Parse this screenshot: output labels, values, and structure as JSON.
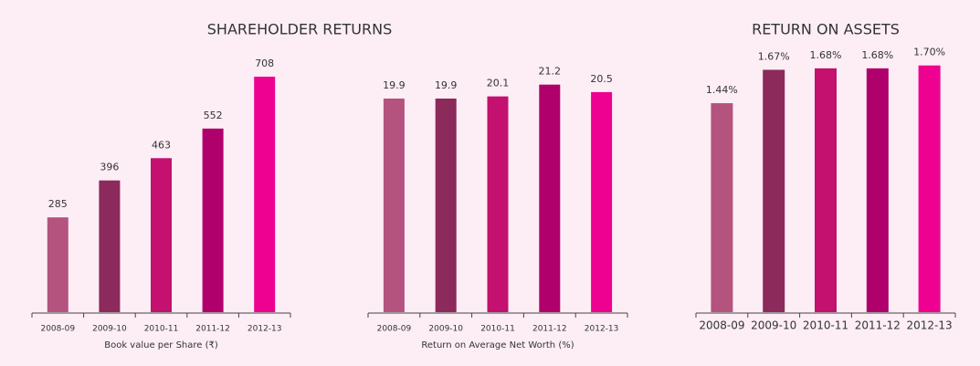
{
  "section_title": "SHAREHOLDER RETURNS",
  "chart_data": [
    {
      "type": "bar",
      "x_label": "Book value per Share (₹)",
      "categories": [
        "2008-09",
        "2009-10",
        "2010-11",
        "2011-12",
        "2012-13"
      ],
      "values": [
        285,
        396,
        463,
        552,
        708
      ],
      "colors": [
        "#b5537f",
        "#8b2a5b",
        "#c4106e",
        "#b0006b",
        "#ee0091"
      ],
      "ylim": [
        0,
        800
      ]
    },
    {
      "type": "bar",
      "x_label": "Return on Average Net Worth (%)",
      "categories": [
        "2008-09",
        "2009-10",
        "2010-11",
        "2011-12",
        "2012-13"
      ],
      "values": [
        19.9,
        19.9,
        20.1,
        21.2,
        20.5
      ],
      "colors": [
        "#b5537f",
        "#8b2a5b",
        "#c4106e",
        "#b0006b",
        "#ee0091"
      ],
      "ylim": [
        0,
        25
      ]
    },
    {
      "type": "bar",
      "title": "RETURN ON ASSETS",
      "categories": [
        "2008-09",
        "2009-10",
        "2010-11",
        "2011-12",
        "2012-13"
      ],
      "values": [
        1.44,
        1.67,
        1.68,
        1.68,
        1.7
      ],
      "value_labels": [
        "1.44%",
        "1.67%",
        "1.68%",
        "1.68%",
        "1.70%"
      ],
      "colors": [
        "#b5537f",
        "#8b2a5b",
        "#c4106e",
        "#b0006b",
        "#ee0091"
      ],
      "ylim": [
        0,
        2
      ]
    }
  ]
}
